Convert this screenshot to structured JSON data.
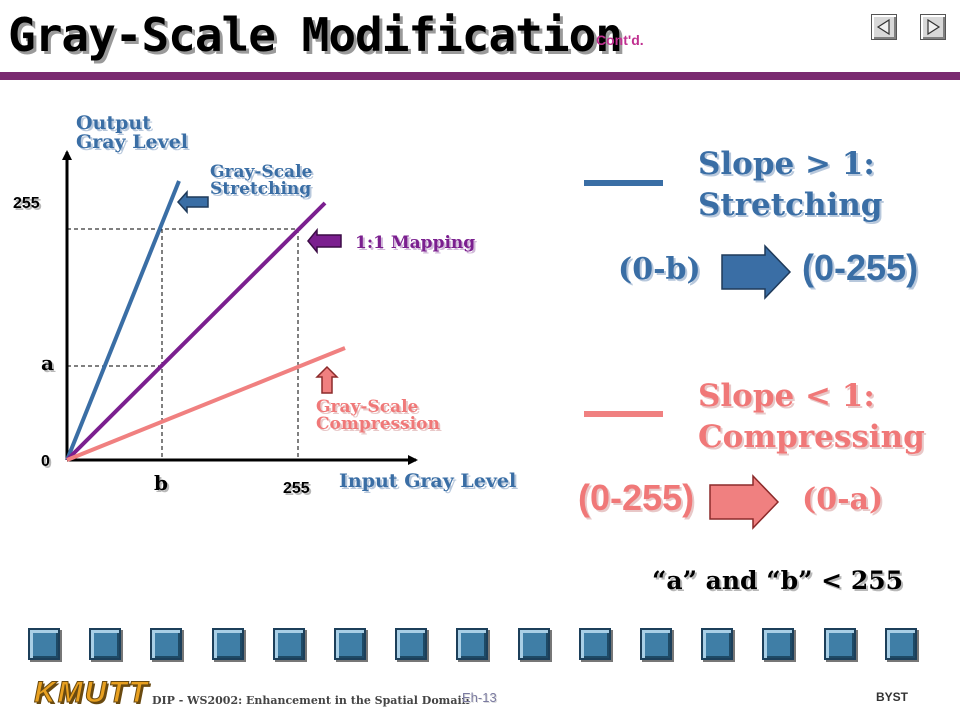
{
  "slide": {
    "title": "Gray-Scale Modification",
    "title_suffix": "Cont'd.",
    "nav": {
      "prev_icon": "arrow-left-icon",
      "next_icon": "arrow-right-icon"
    }
  },
  "diagram": {
    "y_axis_label": "Output\nGray Level",
    "x_axis_label": "Input Gray Level",
    "y_tick_255": "255",
    "y_tick_a": "a",
    "origin": "0",
    "x_tick_b": "b",
    "x_tick_255": "255",
    "stretch_label": "Gray-Scale\nStretching",
    "mapping_label": "1:1 Mapping",
    "compress_label": "Gray-Scale\nCompression",
    "colors": {
      "stretch": "#3a6ea5",
      "identity": "#7b1f8f",
      "compress": "#f08080",
      "axis": "#000000"
    }
  },
  "legend": {
    "stretch_slope": "Slope > 1:",
    "stretch_name": "Stretching",
    "stretch_from": "(0-b)",
    "stretch_to": "(0-255)",
    "compress_slope": "Slope < 1:",
    "compress_name": "Compressing",
    "compress_from": "(0-255)",
    "compress_to": "(0-a)",
    "note": "“a” and “b” < 255"
  },
  "footer": {
    "logo": "KMUTT",
    "course": "DIP - WS2002: Enhancement in the Spatial Domain",
    "page": "Eh-13",
    "author": "BYST",
    "bar_square_count": 15
  }
}
